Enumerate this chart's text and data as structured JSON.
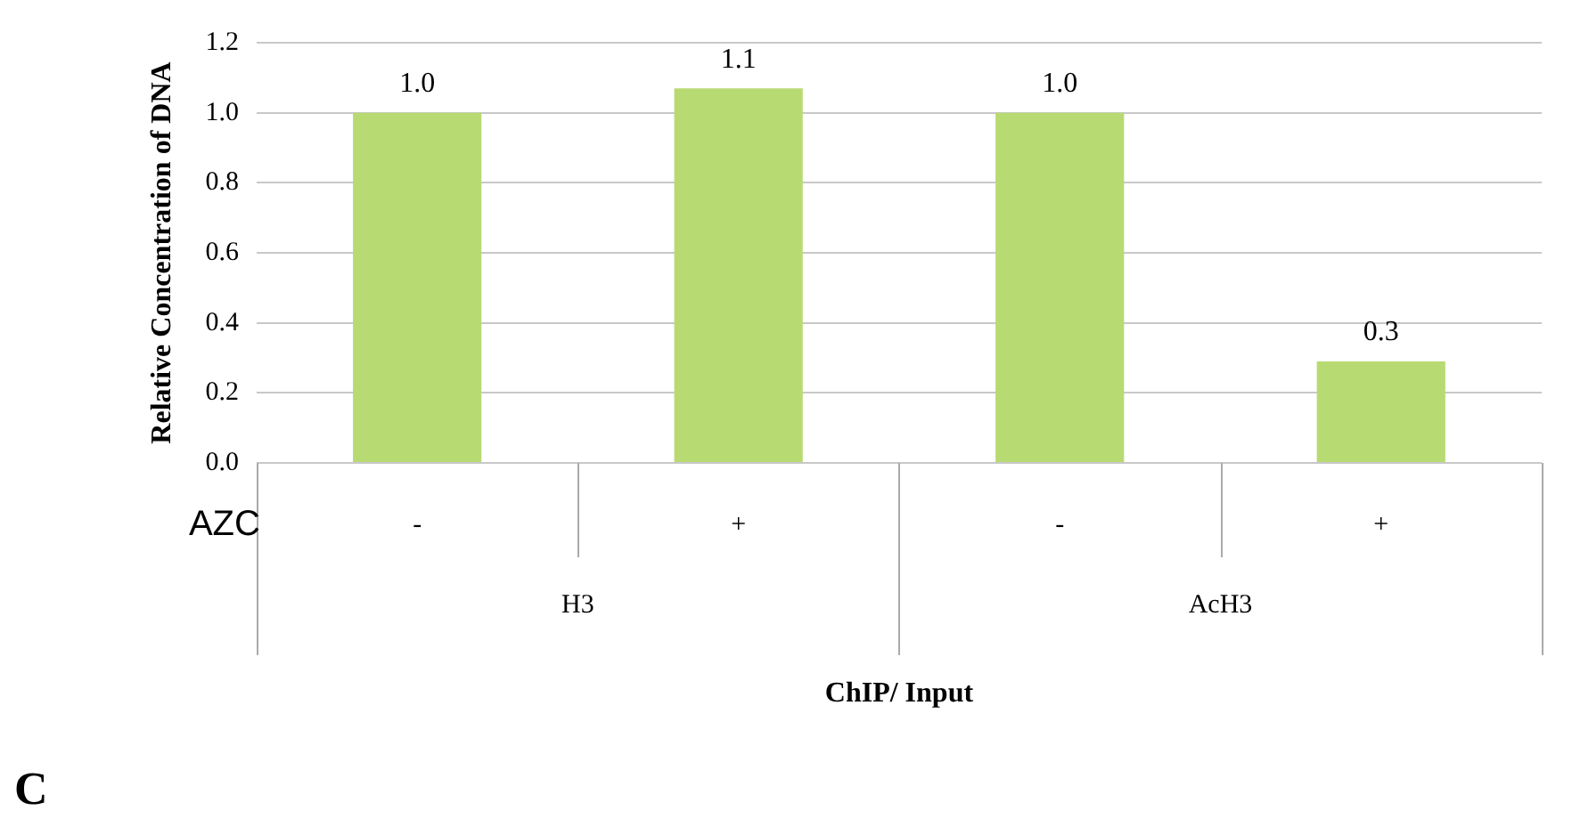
{
  "chart_data": {
    "type": "bar",
    "ylabel": "Relative Concentration of DNA",
    "xlabel": "ChIP/ Input",
    "categories": [
      "-",
      "+",
      "-",
      "+"
    ],
    "values": [
      1.0,
      1.07,
      1.0,
      0.29
    ],
    "value_labels": [
      "1.0",
      "1.1",
      "1.0",
      "0.3"
    ],
    "color": "#b8da72",
    "ylim": [
      0,
      1.2
    ],
    "yticks": [
      {
        "value": 0,
        "label": "0.0"
      },
      0.2,
      0.4,
      0.6,
      0.8,
      {
        "value": 1,
        "label": "1.0"
      },
      1.2
    ],
    "grid": "y",
    "annotations": [
      "AZC",
      "H3",
      "AcH3",
      "C"
    ]
  }
}
